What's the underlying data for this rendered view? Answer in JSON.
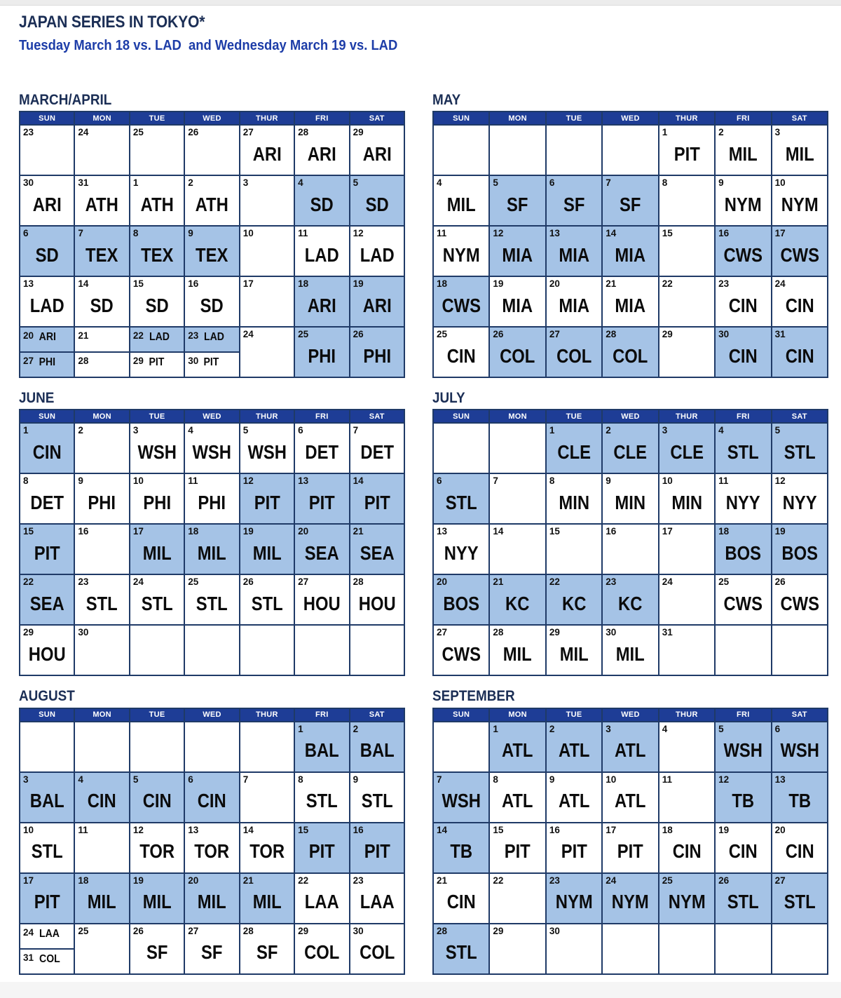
{
  "page": {
    "title": "JAPAN SERIES IN TOKYO*",
    "subtitle": "Tuesday March 18 vs. LAD  and Wednesday March 19 vs. LAD"
  },
  "colors": {
    "navy_border": "#1f3a67",
    "header_bar": "#1e3d96",
    "shaded_cell": "#a5c3e6",
    "title_navy": "#1b2e55",
    "subtitle_blue": "#1d3da8"
  },
  "day_headers": [
    "SUN",
    "MON",
    "TUE",
    "WED",
    "THUR",
    "FRI",
    "SAT"
  ],
  "months": [
    {
      "name": "MARCH/APRIL",
      "rows": [
        [
          {
            "d": "23"
          },
          {
            "d": "24"
          },
          {
            "d": "25"
          },
          {
            "d": "26"
          },
          {
            "d": "27",
            "t": "ARI"
          },
          {
            "d": "28",
            "t": "ARI"
          },
          {
            "d": "29",
            "t": "ARI"
          }
        ],
        [
          {
            "d": "30",
            "t": "ARI"
          },
          {
            "d": "31",
            "t": "ATH"
          },
          {
            "d": "1",
            "t": "ATH"
          },
          {
            "d": "2",
            "t": "ATH"
          },
          {
            "d": "3"
          },
          {
            "d": "4",
            "t": "SD",
            "s": true
          },
          {
            "d": "5",
            "t": "SD",
            "s": true
          }
        ],
        [
          {
            "d": "6",
            "t": "SD",
            "s": true
          },
          {
            "d": "7",
            "t": "TEX",
            "s": true
          },
          {
            "d": "8",
            "t": "TEX",
            "s": true
          },
          {
            "d": "9",
            "t": "TEX",
            "s": true
          },
          {
            "d": "10"
          },
          {
            "d": "11",
            "t": "LAD"
          },
          {
            "d": "12",
            "t": "LAD"
          }
        ],
        [
          {
            "d": "13",
            "t": "LAD"
          },
          {
            "d": "14",
            "t": "SD"
          },
          {
            "d": "15",
            "t": "SD"
          },
          {
            "d": "16",
            "t": "SD"
          },
          {
            "d": "17"
          },
          {
            "d": "18",
            "t": "ARI",
            "s": true
          },
          {
            "d": "19",
            "t": "ARI",
            "s": true
          }
        ],
        [
          {
            "split": [
              {
                "d": "20",
                "t": "ARI",
                "s": true
              },
              {
                "d": "27",
                "t": "PHI",
                "s": true
              }
            ]
          },
          {
            "split": [
              {
                "d": "21"
              },
              {
                "d": "28"
              }
            ]
          },
          {
            "split": [
              {
                "d": "22",
                "t": "LAD",
                "s": true
              },
              {
                "d": "29",
                "t": "PIT"
              }
            ]
          },
          {
            "split": [
              {
                "d": "23",
                "t": "LAD",
                "s": true
              },
              {
                "d": "30",
                "t": "PIT"
              }
            ]
          },
          {
            "d": "24"
          },
          {
            "d": "25",
            "t": "PHI",
            "s": true
          },
          {
            "d": "26",
            "t": "PHI",
            "s": true
          }
        ]
      ]
    },
    {
      "name": "MAY",
      "rows": [
        [
          {},
          {},
          {},
          {},
          {
            "d": "1",
            "t": "PIT"
          },
          {
            "d": "2",
            "t": "MIL"
          },
          {
            "d": "3",
            "t": "MIL"
          }
        ],
        [
          {
            "d": "4",
            "t": "MIL"
          },
          {
            "d": "5",
            "t": "SF",
            "s": true
          },
          {
            "d": "6",
            "t": "SF",
            "s": true
          },
          {
            "d": "7",
            "t": "SF",
            "s": true
          },
          {
            "d": "8"
          },
          {
            "d": "9",
            "t": "NYM"
          },
          {
            "d": "10",
            "t": "NYM"
          }
        ],
        [
          {
            "d": "11",
            "t": "NYM"
          },
          {
            "d": "12",
            "t": "MIA",
            "s": true
          },
          {
            "d": "13",
            "t": "MIA",
            "s": true
          },
          {
            "d": "14",
            "t": "MIA",
            "s": true
          },
          {
            "d": "15"
          },
          {
            "d": "16",
            "t": "CWS",
            "s": true
          },
          {
            "d": "17",
            "t": "CWS",
            "s": true
          }
        ],
        [
          {
            "d": "18",
            "t": "CWS",
            "s": true
          },
          {
            "d": "19",
            "t": "MIA"
          },
          {
            "d": "20",
            "t": "MIA"
          },
          {
            "d": "21",
            "t": "MIA"
          },
          {
            "d": "22"
          },
          {
            "d": "23",
            "t": "CIN"
          },
          {
            "d": "24",
            "t": "CIN"
          }
        ],
        [
          {
            "d": "25",
            "t": "CIN"
          },
          {
            "d": "26",
            "t": "COL",
            "s": true
          },
          {
            "d": "27",
            "t": "COL",
            "s": true
          },
          {
            "d": "28",
            "t": "COL",
            "s": true
          },
          {
            "d": "29"
          },
          {
            "d": "30",
            "t": "CIN",
            "s": true
          },
          {
            "d": "31",
            "t": "CIN",
            "s": true
          }
        ]
      ]
    },
    {
      "name": "JUNE",
      "rows": [
        [
          {
            "d": "1",
            "t": "CIN",
            "s": true
          },
          {
            "d": "2"
          },
          {
            "d": "3",
            "t": "WSH"
          },
          {
            "d": "4",
            "t": "WSH"
          },
          {
            "d": "5",
            "t": "WSH"
          },
          {
            "d": "6",
            "t": "DET"
          },
          {
            "d": "7",
            "t": "DET"
          }
        ],
        [
          {
            "d": "8",
            "t": "DET"
          },
          {
            "d": "9",
            "t": "PHI"
          },
          {
            "d": "10",
            "t": "PHI"
          },
          {
            "d": "11",
            "t": "PHI"
          },
          {
            "d": "12",
            "t": "PIT",
            "s": true
          },
          {
            "d": "13",
            "t": "PIT",
            "s": true
          },
          {
            "d": "14",
            "t": "PIT",
            "s": true
          }
        ],
        [
          {
            "d": "15",
            "t": "PIT",
            "s": true
          },
          {
            "d": "16"
          },
          {
            "d": "17",
            "t": "MIL",
            "s": true
          },
          {
            "d": "18",
            "t": "MIL",
            "s": true
          },
          {
            "d": "19",
            "t": "MIL",
            "s": true
          },
          {
            "d": "20",
            "t": "SEA",
            "s": true
          },
          {
            "d": "21",
            "t": "SEA",
            "s": true
          }
        ],
        [
          {
            "d": "22",
            "t": "SEA",
            "s": true
          },
          {
            "d": "23",
            "t": "STL"
          },
          {
            "d": "24",
            "t": "STL"
          },
          {
            "d": "25",
            "t": "STL"
          },
          {
            "d": "26",
            "t": "STL"
          },
          {
            "d": "27",
            "t": "HOU"
          },
          {
            "d": "28",
            "t": "HOU"
          }
        ],
        [
          {
            "d": "29",
            "t": "HOU"
          },
          {
            "d": "30"
          },
          {},
          {},
          {},
          {},
          {}
        ]
      ]
    },
    {
      "name": "JULY",
      "rows": [
        [
          {},
          {},
          {
            "d": "1",
            "t": "CLE",
            "s": true
          },
          {
            "d": "2",
            "t": "CLE",
            "s": true
          },
          {
            "d": "3",
            "t": "CLE",
            "s": true
          },
          {
            "d": "4",
            "t": "STL",
            "s": true
          },
          {
            "d": "5",
            "t": "STL",
            "s": true
          }
        ],
        [
          {
            "d": "6",
            "t": "STL",
            "s": true
          },
          {
            "d": "7"
          },
          {
            "d": "8",
            "t": "MIN"
          },
          {
            "d": "9",
            "t": "MIN"
          },
          {
            "d": "10",
            "t": "MIN"
          },
          {
            "d": "11",
            "t": "NYY"
          },
          {
            "d": "12",
            "t": "NYY"
          }
        ],
        [
          {
            "d": "13",
            "t": "NYY"
          },
          {
            "d": "14"
          },
          {
            "d": "15"
          },
          {
            "d": "16"
          },
          {
            "d": "17"
          },
          {
            "d": "18",
            "t": "BOS",
            "s": true
          },
          {
            "d": "19",
            "t": "BOS",
            "s": true
          }
        ],
        [
          {
            "d": "20",
            "t": "BOS",
            "s": true
          },
          {
            "d": "21",
            "t": "KC",
            "s": true
          },
          {
            "d": "22",
            "t": "KC",
            "s": true
          },
          {
            "d": "23",
            "t": "KC",
            "s": true
          },
          {
            "d": "24"
          },
          {
            "d": "25",
            "t": "CWS"
          },
          {
            "d": "26",
            "t": "CWS"
          }
        ],
        [
          {
            "d": "27",
            "t": "CWS"
          },
          {
            "d": "28",
            "t": "MIL"
          },
          {
            "d": "29",
            "t": "MIL"
          },
          {
            "d": "30",
            "t": "MIL"
          },
          {
            "d": "31"
          },
          {},
          {}
        ]
      ]
    },
    {
      "name": "AUGUST",
      "rows": [
        [
          {},
          {},
          {},
          {},
          {},
          {
            "d": "1",
            "t": "BAL",
            "s": true
          },
          {
            "d": "2",
            "t": "BAL",
            "s": true
          }
        ],
        [
          {
            "d": "3",
            "t": "BAL",
            "s": true
          },
          {
            "d": "4",
            "t": "CIN",
            "s": true
          },
          {
            "d": "5",
            "t": "CIN",
            "s": true
          },
          {
            "d": "6",
            "t": "CIN",
            "s": true
          },
          {
            "d": "7"
          },
          {
            "d": "8",
            "t": "STL"
          },
          {
            "d": "9",
            "t": "STL"
          }
        ],
        [
          {
            "d": "10",
            "t": "STL"
          },
          {
            "d": "11"
          },
          {
            "d": "12",
            "t": "TOR"
          },
          {
            "d": "13",
            "t": "TOR"
          },
          {
            "d": "14",
            "t": "TOR"
          },
          {
            "d": "15",
            "t": "PIT",
            "s": true
          },
          {
            "d": "16",
            "t": "PIT",
            "s": true
          }
        ],
        [
          {
            "d": "17",
            "t": "PIT",
            "s": true
          },
          {
            "d": "18",
            "t": "MIL",
            "s": true
          },
          {
            "d": "19",
            "t": "MIL",
            "s": true
          },
          {
            "d": "20",
            "t": "MIL",
            "s": true
          },
          {
            "d": "21",
            "t": "MIL",
            "s": true
          },
          {
            "d": "22",
            "t": "LAA"
          },
          {
            "d": "23",
            "t": "LAA"
          }
        ],
        [
          {
            "split": [
              {
                "d": "24",
                "t": "LAA"
              },
              {
                "d": "31",
                "t": "COL"
              }
            ]
          },
          {
            "d": "25"
          },
          {
            "d": "26",
            "t": "SF"
          },
          {
            "d": "27",
            "t": "SF"
          },
          {
            "d": "28",
            "t": "SF"
          },
          {
            "d": "29",
            "t": "COL"
          },
          {
            "d": "30",
            "t": "COL"
          }
        ]
      ]
    },
    {
      "name": "SEPTEMBER",
      "rows": [
        [
          {},
          {
            "d": "1",
            "t": "ATL",
            "s": true
          },
          {
            "d": "2",
            "t": "ATL",
            "s": true
          },
          {
            "d": "3",
            "t": "ATL",
            "s": true
          },
          {
            "d": "4"
          },
          {
            "d": "5",
            "t": "WSH",
            "s": true
          },
          {
            "d": "6",
            "t": "WSH",
            "s": true
          }
        ],
        [
          {
            "d": "7",
            "t": "WSH",
            "s": true
          },
          {
            "d": "8",
            "t": "ATL"
          },
          {
            "d": "9",
            "t": "ATL"
          },
          {
            "d": "10",
            "t": "ATL"
          },
          {
            "d": "11"
          },
          {
            "d": "12",
            "t": "TB",
            "s": true
          },
          {
            "d": "13",
            "t": "TB",
            "s": true
          }
        ],
        [
          {
            "d": "14",
            "t": "TB",
            "s": true
          },
          {
            "d": "15",
            "t": "PIT"
          },
          {
            "d": "16",
            "t": "PIT"
          },
          {
            "d": "17",
            "t": "PIT"
          },
          {
            "d": "18",
            "t": "CIN"
          },
          {
            "d": "19",
            "t": "CIN"
          },
          {
            "d": "20",
            "t": "CIN"
          }
        ],
        [
          {
            "d": "21",
            "t": "CIN"
          },
          {
            "d": "22"
          },
          {
            "d": "23",
            "t": "NYM",
            "s": true
          },
          {
            "d": "24",
            "t": "NYM",
            "s": true
          },
          {
            "d": "25",
            "t": "NYM",
            "s": true
          },
          {
            "d": "26",
            "t": "STL",
            "s": true
          },
          {
            "d": "27",
            "t": "STL",
            "s": true
          }
        ],
        [
          {
            "d": "28",
            "t": "STL",
            "s": true
          },
          {
            "d": "29"
          },
          {
            "d": "30"
          },
          {},
          {},
          {},
          {}
        ]
      ]
    }
  ]
}
